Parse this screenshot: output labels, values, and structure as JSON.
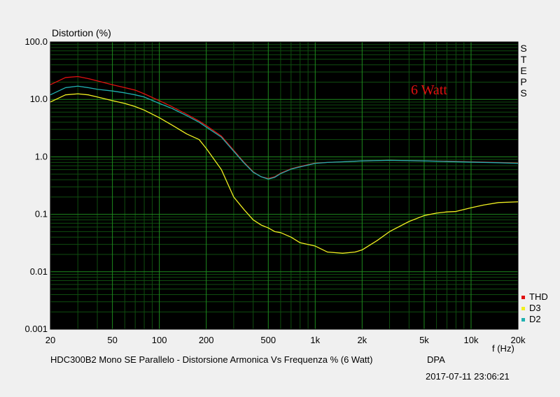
{
  "chart_data": {
    "type": "line",
    "ylabel": "Distortion (%)",
    "xlabel": "f (Hz)",
    "xscale": "log",
    "yscale": "log",
    "xlim": [
      20,
      20000
    ],
    "ylim": [
      0.001,
      100
    ],
    "grid": true,
    "legend_position": "bottom-right",
    "x_ticks": [
      {
        "value": 20,
        "label": "20"
      },
      {
        "value": 50,
        "label": "50"
      },
      {
        "value": 100,
        "label": "100"
      },
      {
        "value": 200,
        "label": "200"
      },
      {
        "value": 500,
        "label": "500"
      },
      {
        "value": 1000,
        "label": "1k"
      },
      {
        "value": 2000,
        "label": "2k"
      },
      {
        "value": 5000,
        "label": "5k"
      },
      {
        "value": 10000,
        "label": "10k"
      },
      {
        "value": 20000,
        "label": "20k"
      }
    ],
    "y_ticks": [
      {
        "value": 100,
        "label": "100.0"
      },
      {
        "value": 10,
        "label": "10.0"
      },
      {
        "value": 1,
        "label": "1.0"
      },
      {
        "value": 0.1,
        "label": "0.1"
      },
      {
        "value": 0.01,
        "label": "0.01"
      },
      {
        "value": 0.001,
        "label": "0.001"
      }
    ],
    "side_label": "STEPS",
    "annotation": "6 Watt",
    "series": [
      {
        "name": "THD",
        "color": "#e01010",
        "x": [
          20,
          25,
          30,
          35,
          40,
          50,
          60,
          70,
          80,
          100,
          120,
          150,
          180,
          200,
          250,
          300,
          350,
          400,
          450,
          500,
          550,
          600,
          700,
          800,
          1000,
          1200,
          1500,
          2000,
          3000,
          5000,
          7000,
          10000,
          15000,
          20000
        ],
        "y": [
          18,
          24,
          25,
          23,
          21,
          18,
          16,
          14.5,
          12.5,
          9.5,
          7.5,
          5.5,
          4.2,
          3.5,
          2.3,
          1.3,
          0.8,
          0.55,
          0.45,
          0.42,
          0.45,
          0.52,
          0.62,
          0.68,
          0.78,
          0.8,
          0.82,
          0.85,
          0.87,
          0.85,
          0.84,
          0.82,
          0.8,
          0.78
        ]
      },
      {
        "name": "D3",
        "color": "#f0f020",
        "x": [
          20,
          25,
          30,
          35,
          40,
          50,
          60,
          70,
          80,
          100,
          120,
          150,
          180,
          200,
          250,
          300,
          350,
          400,
          450,
          500,
          550,
          600,
          700,
          800,
          1000,
          1200,
          1500,
          1800,
          2000,
          2500,
          3000,
          4000,
          5000,
          6000,
          7000,
          8000,
          10000,
          12000,
          15000,
          20000
        ],
        "y": [
          9,
          12,
          12.5,
          12,
          11,
          9.5,
          8.5,
          7.5,
          6.5,
          4.8,
          3.6,
          2.5,
          2.0,
          1.4,
          0.6,
          0.2,
          0.12,
          0.08,
          0.065,
          0.058,
          0.05,
          0.048,
          0.04,
          0.032,
          0.028,
          0.022,
          0.021,
          0.022,
          0.024,
          0.035,
          0.05,
          0.075,
          0.095,
          0.105,
          0.11,
          0.112,
          0.13,
          0.145,
          0.16,
          0.165
        ]
      },
      {
        "name": "D2",
        "color": "#20b0b0",
        "x": [
          20,
          25,
          30,
          35,
          40,
          50,
          60,
          70,
          80,
          100,
          120,
          150,
          180,
          200,
          250,
          300,
          350,
          400,
          450,
          500,
          550,
          600,
          700,
          800,
          1000,
          1200,
          1500,
          2000,
          3000,
          5000,
          7000,
          10000,
          15000,
          20000
        ],
        "y": [
          12,
          16,
          17,
          16,
          15,
          14,
          13,
          12,
          11,
          8.5,
          7,
          5.2,
          4.0,
          3.3,
          2.2,
          1.25,
          0.78,
          0.54,
          0.45,
          0.41,
          0.44,
          0.51,
          0.61,
          0.67,
          0.77,
          0.8,
          0.82,
          0.85,
          0.87,
          0.85,
          0.83,
          0.81,
          0.79,
          0.77
        ]
      }
    ]
  },
  "footer": {
    "title": "HDC300B2 Mono SE Parallelo - Distorsione Armonica Vs Frequenza % (6 Watt)",
    "tag": "DPA",
    "date": "2017-07-11 23:06:21"
  }
}
